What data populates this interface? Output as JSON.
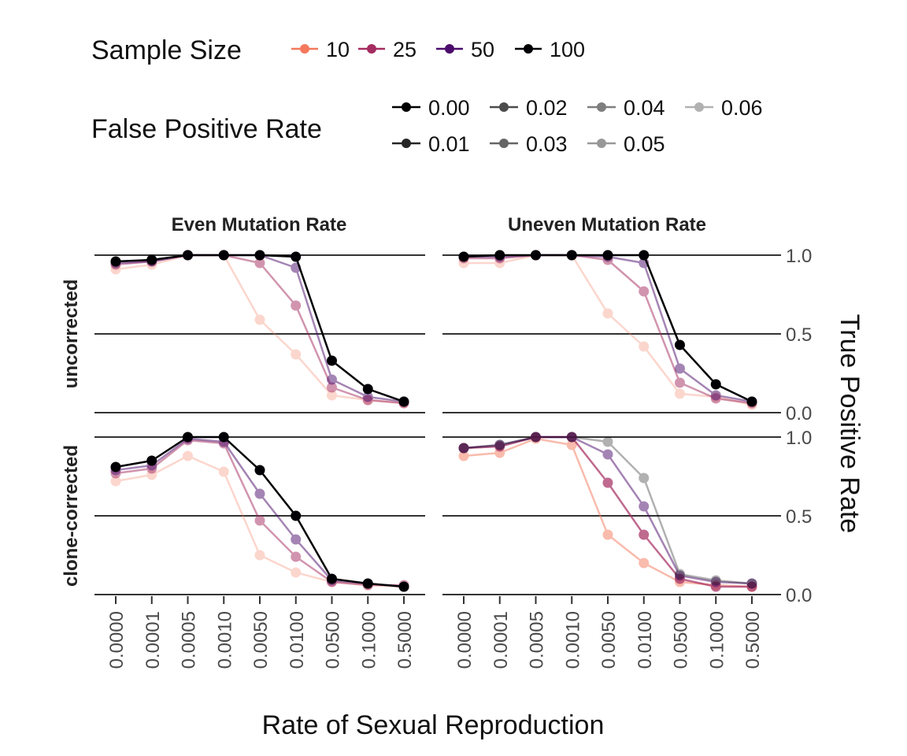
{
  "legend": {
    "sample_size": {
      "title": "Sample Size",
      "items": [
        {
          "label": "10",
          "color": "#f4795c"
        },
        {
          "label": "25",
          "color": "#a52c60"
        },
        {
          "label": "50",
          "color": "#4b0c6b"
        },
        {
          "label": "100",
          "color": "#000004"
        }
      ]
    },
    "fpr": {
      "title": "False Positive Rate",
      "items": [
        {
          "label": "0.00",
          "alpha": 1.0
        },
        {
          "label": "0.01",
          "alpha": 0.85
        },
        {
          "label": "0.02",
          "alpha": 0.7
        },
        {
          "label": "0.03",
          "alpha": 0.6
        },
        {
          "label": "0.04",
          "alpha": 0.5
        },
        {
          "label": "0.05",
          "alpha": 0.4
        },
        {
          "label": "0.06",
          "alpha": 0.3
        }
      ]
    }
  },
  "chart_data": {
    "type": "line",
    "xlabel": "Rate of Sexual Reproduction",
    "ylabel": "True Positive Rate",
    "x_categories": [
      "0.0000",
      "0.0001",
      "0.0005",
      "0.0010",
      "0.0050",
      "0.0100",
      "0.0500",
      "0.1000",
      "0.5000"
    ],
    "ylim": [
      0,
      1
    ],
    "y_ticks": [
      "0.0",
      "0.5",
      "1.0"
    ],
    "columns": [
      "Even Mutation Rate",
      "Uneven Mutation Rate"
    ],
    "rows": [
      "uncorrected",
      "clone-corrected"
    ],
    "grid": "horizontal at 0, 0.5, 1",
    "legend_position": "top",
    "panels": [
      {
        "column": "Even Mutation Rate",
        "row": "uncorrected",
        "series": [
          {
            "sample_size": "10",
            "false_positive_rate": "0.06",
            "values": [
              0.91,
              0.94,
              1.0,
              1.0,
              0.59,
              0.37,
              0.11,
              0.08,
              0.06
            ]
          },
          {
            "sample_size": "25",
            "false_positive_rate": "0.04",
            "values": [
              0.94,
              0.96,
              1.0,
              1.0,
              0.95,
              0.68,
              0.16,
              0.08,
              0.06
            ]
          },
          {
            "sample_size": "50",
            "false_positive_rate": "0.04",
            "values": [
              0.95,
              0.96,
              1.0,
              1.0,
              1.0,
              0.92,
              0.21,
              0.1,
              0.07
            ]
          },
          {
            "sample_size": "100",
            "false_positive_rate": "0.00",
            "values": [
              0.96,
              0.97,
              1.0,
              1.0,
              1.0,
              0.99,
              0.33,
              0.15,
              0.07
            ]
          }
        ]
      },
      {
        "column": "Uneven Mutation Rate",
        "row": "uncorrected",
        "series": [
          {
            "sample_size": "10",
            "false_positive_rate": "0.06",
            "values": [
              0.95,
              0.95,
              1.0,
              1.0,
              0.63,
              0.42,
              0.12,
              0.1,
              0.05
            ]
          },
          {
            "sample_size": "25",
            "false_positive_rate": "0.04",
            "values": [
              0.98,
              0.98,
              1.0,
              1.0,
              0.97,
              0.77,
              0.19,
              0.09,
              0.06
            ]
          },
          {
            "sample_size": "50",
            "false_positive_rate": "0.04",
            "values": [
              0.99,
              0.99,
              1.0,
              1.0,
              0.99,
              0.95,
              0.28,
              0.11,
              0.07
            ]
          },
          {
            "sample_size": "100",
            "false_positive_rate": "0.00",
            "values": [
              0.99,
              1.0,
              1.0,
              1.0,
              1.0,
              1.0,
              0.43,
              0.18,
              0.07
            ]
          }
        ]
      },
      {
        "column": "Even Mutation Rate",
        "row": "clone-corrected",
        "series": [
          {
            "sample_size": "10",
            "false_positive_rate": "0.06",
            "values": [
              0.72,
              0.76,
              0.88,
              0.78,
              0.25,
              0.14,
              0.08,
              0.06,
              0.05
            ]
          },
          {
            "sample_size": "25",
            "false_positive_rate": "0.04",
            "values": [
              0.77,
              0.8,
              0.98,
              0.96,
              0.47,
              0.24,
              0.08,
              0.06,
              0.06
            ]
          },
          {
            "sample_size": "50",
            "false_positive_rate": "0.04",
            "values": [
              0.79,
              0.82,
              0.99,
              0.97,
              0.64,
              0.35,
              0.09,
              0.07,
              0.05
            ]
          },
          {
            "sample_size": "100",
            "false_positive_rate": "0.00",
            "values": [
              0.81,
              0.85,
              1.0,
              1.0,
              0.79,
              0.5,
              0.1,
              0.07,
              0.05
            ]
          }
        ]
      },
      {
        "column": "Uneven Mutation Rate",
        "row": "clone-corrected",
        "series": [
          {
            "sample_size": "10",
            "false_positive_rate": "0.04",
            "values": [
              0.88,
              0.9,
              0.99,
              0.95,
              0.38,
              0.2,
              0.08,
              0.06,
              0.05
            ]
          },
          {
            "sample_size": "25",
            "false_positive_rate": "0.02",
            "values": [
              0.93,
              0.94,
              1.0,
              1.0,
              0.71,
              0.38,
              0.1,
              0.05,
              0.05
            ]
          },
          {
            "sample_size": "50",
            "false_positive_rate": "0.04",
            "values": [
              0.93,
              0.95,
              1.0,
              1.0,
              0.89,
              0.56,
              0.12,
              0.08,
              0.07
            ]
          },
          {
            "sample_size": "100",
            "false_positive_rate": "0.06",
            "values": [
              0.93,
              0.95,
              1.0,
              1.0,
              0.97,
              0.74,
              0.13,
              0.09,
              0.07
            ]
          }
        ]
      }
    ]
  }
}
